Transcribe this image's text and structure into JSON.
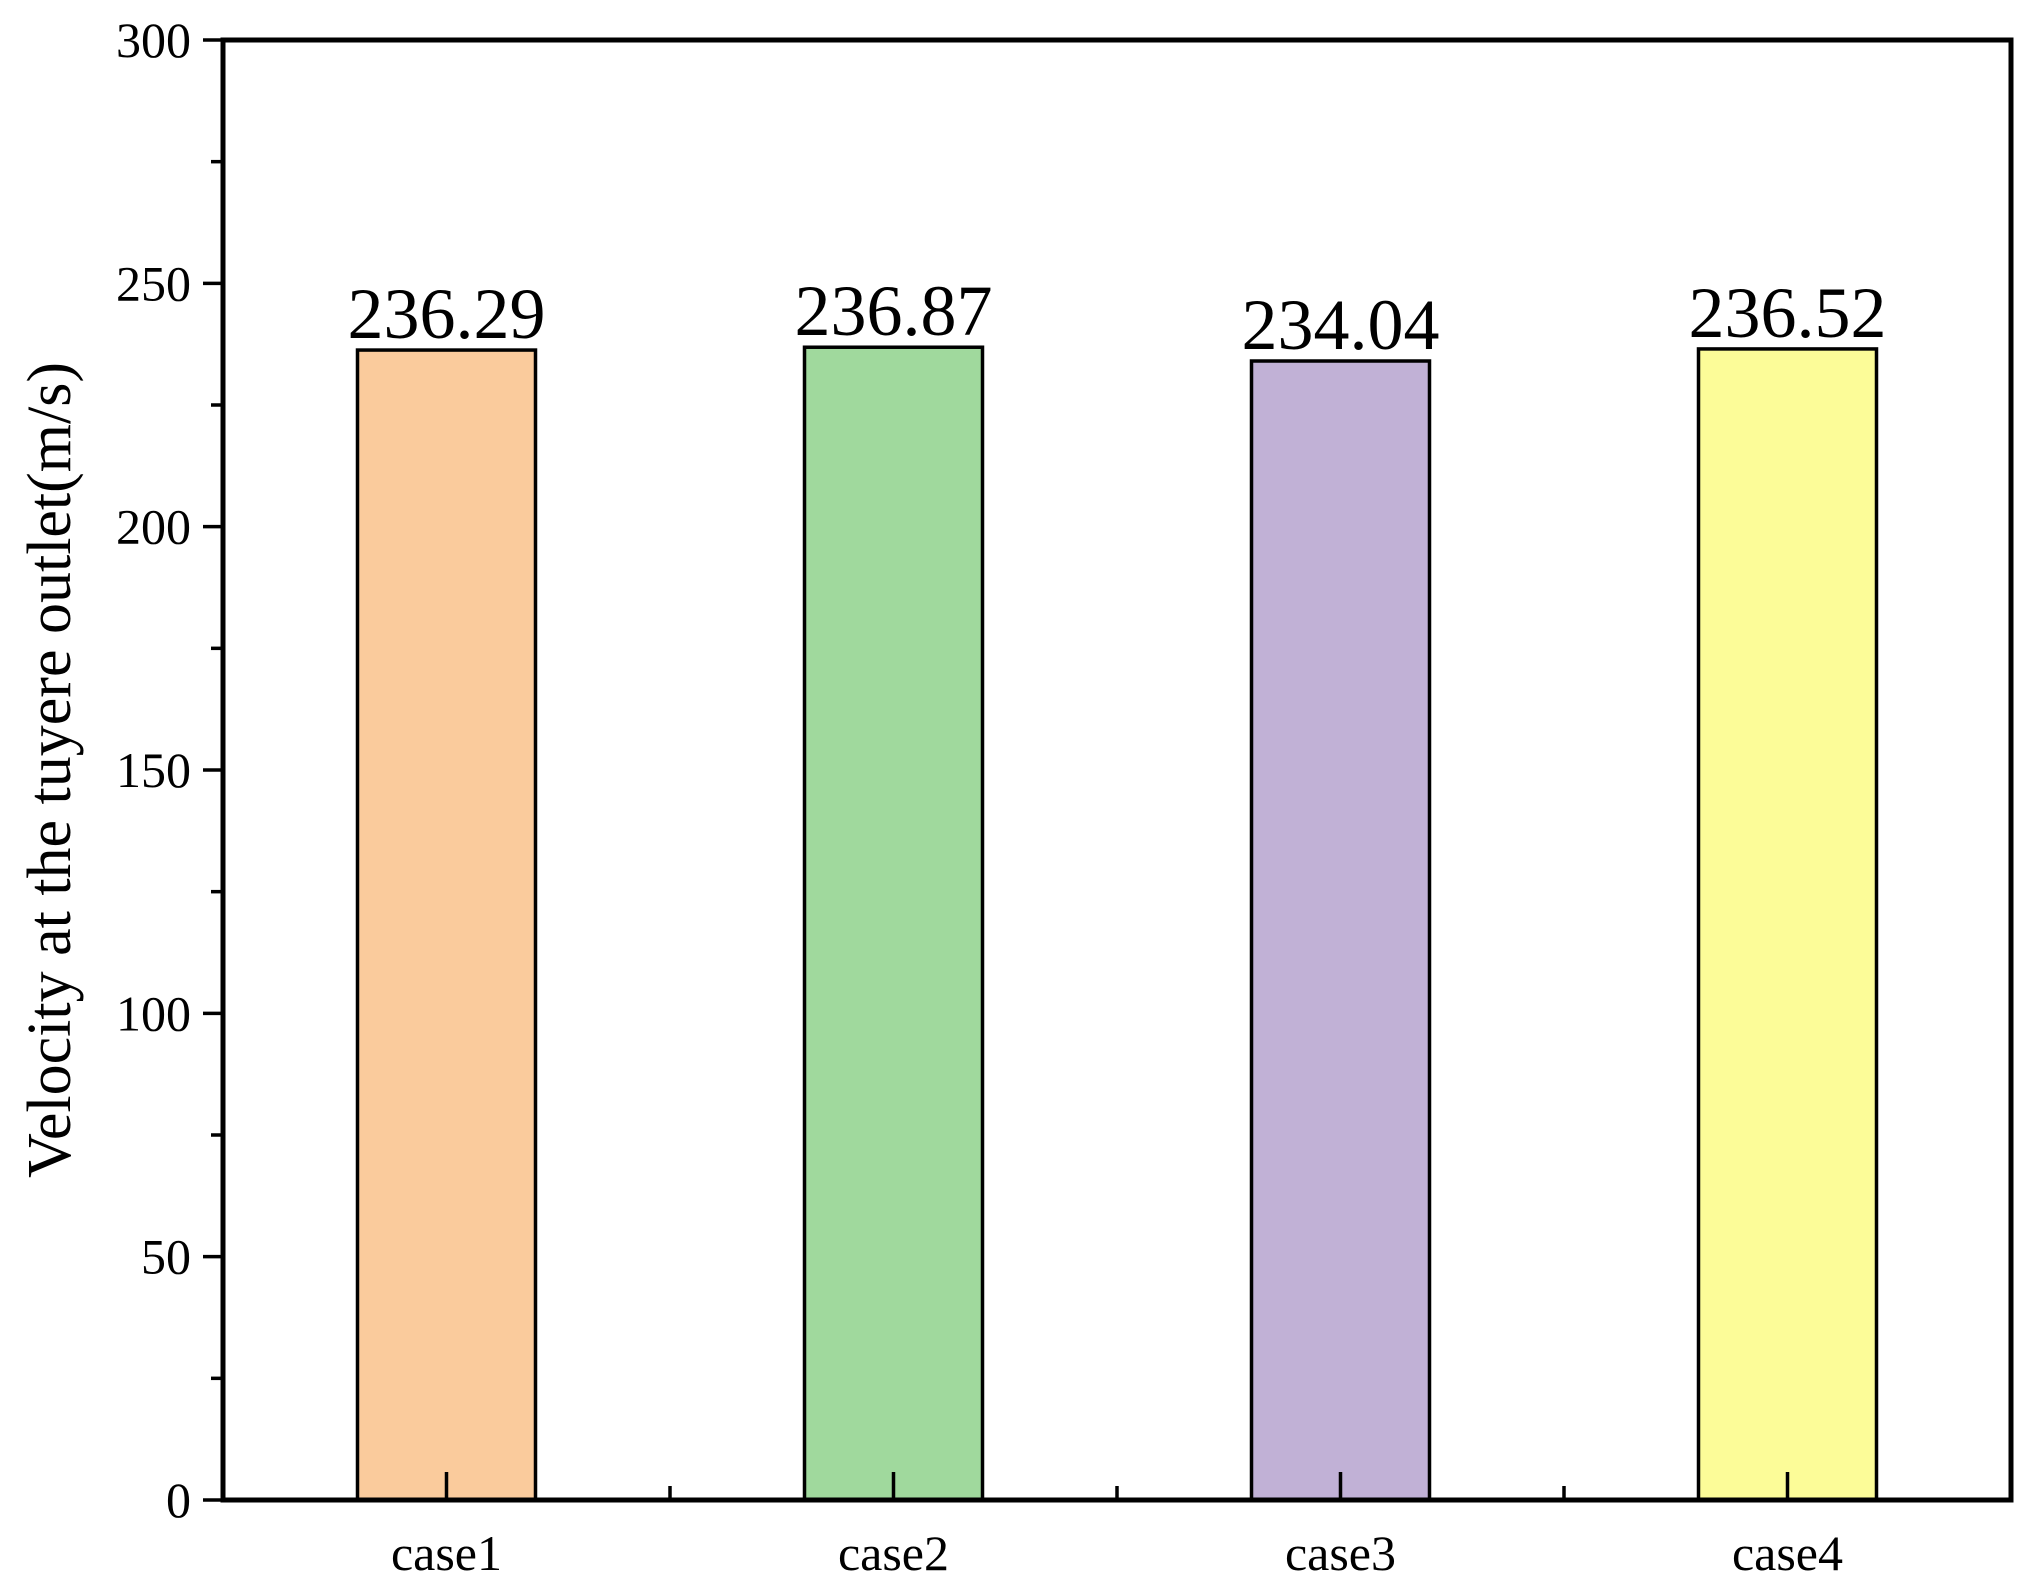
{
  "chart_data": {
    "type": "bar",
    "categories": [
      "case1",
      "case2",
      "case3",
      "case4"
    ],
    "values": [
      236.29,
      236.87,
      234.04,
      236.52
    ],
    "data_labels": [
      "236.29",
      "236.87",
      "234.04",
      "236.52"
    ],
    "bar_colors": [
      "#FACB9C",
      "#A0D99D",
      "#C1B1D6",
      "#FCFC98"
    ],
    "title": "",
    "xlabel": "",
    "ylabel": "Velocity at the tuyere outlet(m/s)",
    "ylim": [
      0,
      300
    ],
    "yticks": [
      0,
      50,
      100,
      150,
      200,
      250,
      300
    ],
    "ytick_labels": [
      "0",
      "50",
      "100",
      "150",
      "200",
      "250",
      "300"
    ],
    "y_minor_step": 25,
    "grid": false,
    "legend": "none"
  }
}
